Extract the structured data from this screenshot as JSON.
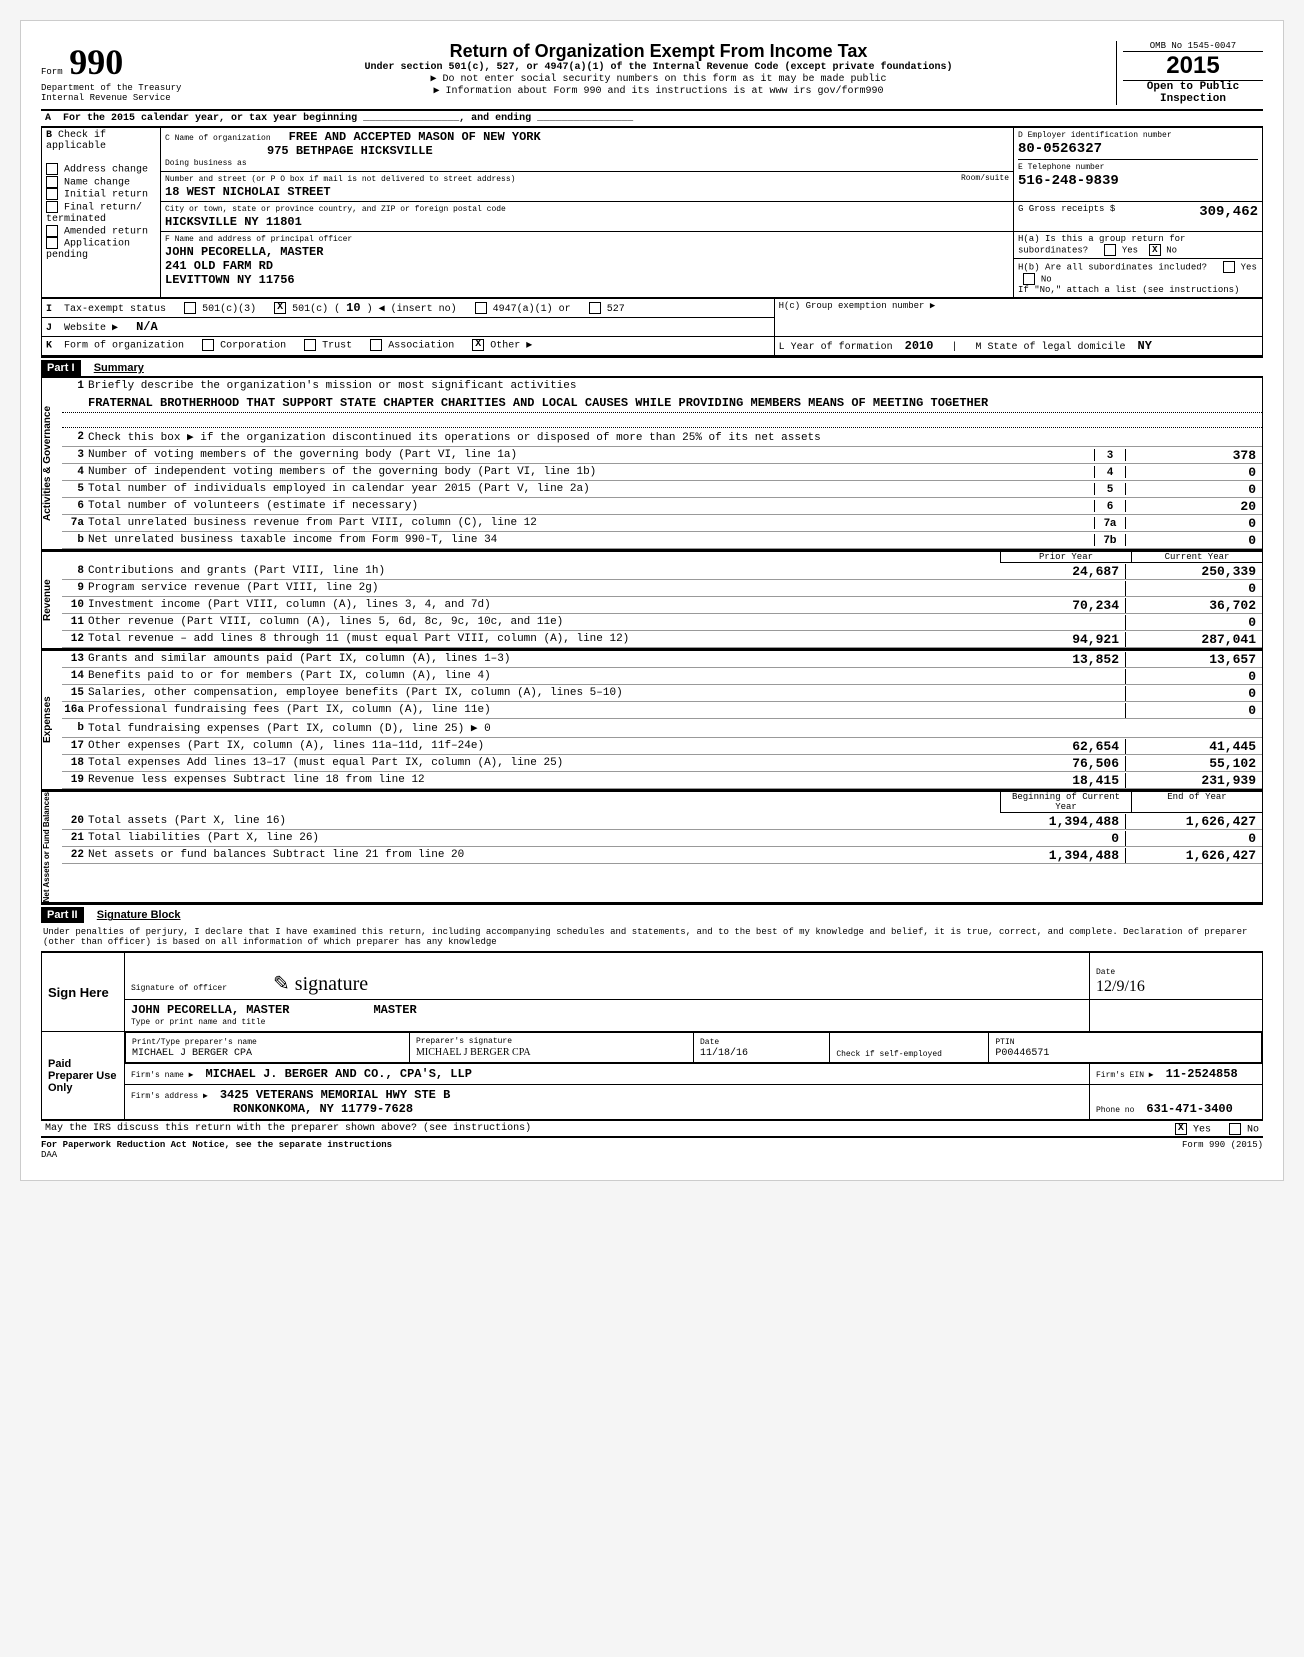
{
  "header": {
    "form_label": "Form",
    "form_number": "990",
    "dept": "Department of the Treasury",
    "irs": "Internal Revenue Service",
    "title": "Return of Organization Exempt From Income Tax",
    "subtitle": "Under section 501(c), 527, or 4947(a)(1) of the Internal Revenue Code (except private foundations)",
    "note1": "▶ Do not enter social security numbers on this form as it may be made public",
    "note2": "▶ Information about Form 990 and its instructions is at www irs gov/form990",
    "omb": "OMB No 1545-0047",
    "year": "2015",
    "open": "Open to Public",
    "inspection": "Inspection"
  },
  "line_a": "For the 2015 calendar year, or tax year beginning ________________, and ending ________________",
  "block_b": {
    "label": "Check if applicable",
    "items": [
      "Address change",
      "Name change",
      "Initial return",
      "Final return/ terminated",
      "Amended return",
      "Application pending"
    ]
  },
  "block_c": {
    "name_label": "C Name of organization",
    "name": "FREE AND ACCEPTED MASON OF NEW YORK",
    "name2": "975 BETHPAGE HICKSVILLE",
    "dba_label": "Doing business as",
    "street_label": "Number and street (or P O box if mail is not delivered to street address)",
    "street": "18 WEST NICHOLAI STREET",
    "room_label": "Room/suite",
    "city_label": "City or town, state or province country, and ZIP or foreign postal code",
    "city": "HICKSVILLE            NY 11801",
    "officer_label": "F Name and address of principal officer",
    "officer1": "JOHN PECORELLA, MASTER",
    "officer2": "241 OLD FARM RD",
    "officer3": "LEVITTOWN           NY 11756"
  },
  "block_d": {
    "label": "D Employer identification number",
    "value": "80-0526327"
  },
  "block_e": {
    "label": "E Telephone number",
    "value": "516-248-9839"
  },
  "block_g": {
    "label": "G Gross receipts $",
    "value": "309,462"
  },
  "block_h": {
    "a": "H(a) Is this a group return for subordinates?",
    "a_yes": "Yes",
    "a_no": "No",
    "a_checked": "X",
    "b": "H(b) Are all subordinates included?",
    "b_yes": "Yes",
    "b_no": "No",
    "note": "If \"No,\" attach a list (see instructions)",
    "c": "H(c) Group exemption number ▶"
  },
  "line_i": {
    "label": "Tax-exempt status",
    "opts": [
      "501(c)(3)",
      "501(c)",
      "(insert no)",
      "4947(a)(1) or",
      "527"
    ],
    "checked_501c": "X",
    "insert_no": "10"
  },
  "line_j": {
    "label": "Website ▶",
    "value": "N/A"
  },
  "line_k": {
    "label": "Form of organization",
    "opts": [
      "Corporation",
      "Trust",
      "Association",
      "Other ▶"
    ],
    "checked": "X"
  },
  "line_l": {
    "label": "L  Year of formation",
    "value": "2010",
    "state_label": "M  State of legal domicile",
    "state": "NY"
  },
  "part1": {
    "header": "Part I",
    "title": "Summary",
    "line1_label": "Briefly describe the organization's mission or most significant activities",
    "line1_text": "FRATERNAL BROTHERHOOD THAT SUPPORT STATE CHAPTER CHARITIES AND LOCAL CAUSES WHILE PROVIDING MEMBERS MEANS OF MEETING TOGETHER",
    "line2": "Check this box ▶     if the organization discontinued its operations or disposed of more than 25% of its net assets",
    "governance_label": "Activities & Governance",
    "revenue_label": "Revenue",
    "expenses_label": "Expenses",
    "netassets_label": "Net Assets or Fund Balances",
    "rows_single": [
      {
        "n": "3",
        "lbl": "Number of voting members of the governing body (Part VI, line 1a)",
        "cell": "3",
        "val": "378"
      },
      {
        "n": "4",
        "lbl": "Number of independent voting members of the governing body (Part VI, line 1b)",
        "cell": "4",
        "val": "0"
      },
      {
        "n": "5",
        "lbl": "Total number of individuals employed in calendar year 2015 (Part V, line 2a)",
        "cell": "5",
        "val": "0"
      },
      {
        "n": "6",
        "lbl": "Total number of volunteers (estimate if necessary)",
        "cell": "6",
        "val": "20"
      },
      {
        "n": "7a",
        "lbl": "Total unrelated business revenue from Part VIII, column (C), line 12",
        "cell": "7a",
        "val": "0"
      },
      {
        "n": "b",
        "lbl": "Net unrelated business taxable income from Form 990-T, line 34",
        "cell": "7b",
        "val": "0"
      }
    ],
    "col_headers": {
      "prior": "Prior Year",
      "current": "Current Year",
      "boy": "Beginning of Current Year",
      "eoy": "End of Year"
    },
    "rows_revenue": [
      {
        "n": "8",
        "lbl": "Contributions and grants (Part VIII, line 1h)",
        "prior": "24,687",
        "cur": "250,339"
      },
      {
        "n": "9",
        "lbl": "Program service revenue (Part VIII, line 2g)",
        "prior": "",
        "cur": "0"
      },
      {
        "n": "10",
        "lbl": "Investment income (Part VIII, column (A), lines 3, 4, and 7d)",
        "prior": "70,234",
        "cur": "36,702"
      },
      {
        "n": "11",
        "lbl": "Other revenue (Part VIII, column (A), lines 5, 6d, 8c, 9c, 10c, and 11e)",
        "prior": "",
        "cur": "0"
      },
      {
        "n": "12",
        "lbl": "Total revenue – add lines 8 through 11 (must equal Part VIII, column (A), line 12)",
        "prior": "94,921",
        "cur": "287,041"
      }
    ],
    "rows_expenses": [
      {
        "n": "13",
        "lbl": "Grants and similar amounts paid (Part IX, column (A), lines 1–3)",
        "prior": "13,852",
        "cur": "13,657"
      },
      {
        "n": "14",
        "lbl": "Benefits paid to or for members (Part IX, column (A), line 4)",
        "prior": "",
        "cur": "0"
      },
      {
        "n": "15",
        "lbl": "Salaries, other compensation, employee benefits (Part IX, column (A), lines 5–10)",
        "prior": "",
        "cur": "0"
      },
      {
        "n": "16a",
        "lbl": "Professional fundraising fees (Part IX, column (A), line 11e)",
        "prior": "",
        "cur": "0"
      },
      {
        "n": "b",
        "lbl": "Total fundraising expenses (Part IX, column (D), line 25) ▶                                0",
        "prior": "—shade—",
        "cur": "—shade—"
      },
      {
        "n": "17",
        "lbl": "Other expenses (Part IX, column (A), lines 11a–11d, 11f–24e)",
        "prior": "62,654",
        "cur": "41,445"
      },
      {
        "n": "18",
        "lbl": "Total expenses Add lines 13–17 (must equal Part IX, column (A), line 25)",
        "prior": "76,506",
        "cur": "55,102"
      },
      {
        "n": "19",
        "lbl": "Revenue less expenses Subtract line 18 from line 12",
        "prior": "18,415",
        "cur": "231,939"
      }
    ],
    "rows_net": [
      {
        "n": "20",
        "lbl": "Total assets (Part X, line 16)",
        "prior": "1,394,488",
        "cur": "1,626,427"
      },
      {
        "n": "21",
        "lbl": "Total liabilities (Part X, line 26)",
        "prior": "0",
        "cur": "0"
      },
      {
        "n": "22",
        "lbl": "Net assets or fund balances Subtract line 21 from line 20",
        "prior": "1,394,488",
        "cur": "1,626,427"
      }
    ]
  },
  "part2": {
    "header": "Part II",
    "title": "Signature Block",
    "penalty": "Under penalties of perjury, I declare that I have examined this return, including accompanying schedules and statements, and to the best of my knowledge and belief, it is true, correct, and complete. Declaration of preparer (other than officer) is based on all information of which preparer has any knowledge",
    "sign_here": "Sign Here",
    "sig_officer_label": "Signature of officer",
    "date_label": "Date",
    "officer_typed": "JOHN PECORELLA, MASTER",
    "officer_title": "MASTER",
    "type_label": "Type or print name and title",
    "sig_date": "12/9/16",
    "paid": "Paid Preparer Use Only",
    "prep_name_label": "Print/Type preparer's name",
    "prep_name": "MICHAEL J BERGER CPA",
    "prep_sig_label": "Preparer's signature",
    "prep_sig": "MICHAEL J BERGER CPA",
    "prep_date": "11/18/16",
    "check_label": "Check        if self-employed",
    "ptin_label": "PTIN",
    "ptin": "P00446571",
    "firm_name_label": "Firm's name ▶",
    "firm_name": "MICHAEL J. BERGER AND CO., CPA'S, LLP",
    "firm_ein_label": "Firm's EIN ▶",
    "firm_ein": "11-2524858",
    "firm_addr_label": "Firm's address ▶",
    "firm_addr1": "3425 VETERANS MEMORIAL HWY STE B",
    "firm_addr2": "RONKONKOMA, NY  11779-7628",
    "phone_label": "Phone no",
    "phone": "631-471-3400",
    "discuss": "May the IRS discuss this return with the preparer shown above? (see instructions)",
    "discuss_yes": "Yes",
    "discuss_no": "No",
    "discuss_checked": "X",
    "pra": "For Paperwork Reduction Act Notice, see the separate instructions",
    "daa": "DAA",
    "form_footer": "Form 990 (2015)"
  }
}
